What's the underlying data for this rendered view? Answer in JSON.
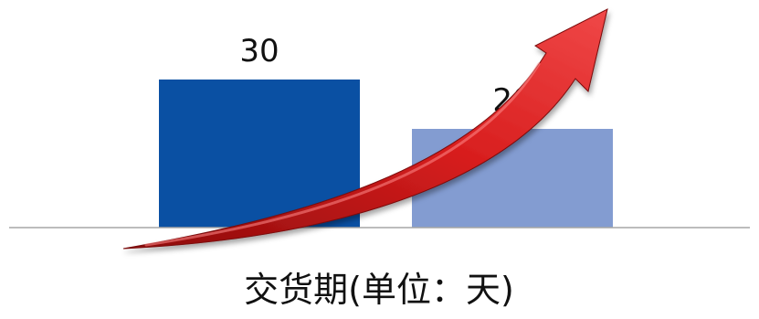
{
  "chart_data": {
    "type": "bar",
    "categories": [
      "",
      ""
    ],
    "values": [
      30,
      20
    ],
    "data_labels": [
      "30",
      "20"
    ],
    "colors": [
      "#0A50A3",
      "#839CD1"
    ],
    "xlabel": "交货期(单位：天)",
    "ylabel": "",
    "ylim": [
      0,
      30
    ],
    "grid": false,
    "legend": "none",
    "annotations": [
      "red-upward-trend-arrow"
    ]
  },
  "colors": {
    "axis": "#A6A6A6",
    "arrow_dark": "#8C0A0A",
    "arrow_main": "#D81E1E",
    "arrow_light": "#F26060"
  }
}
